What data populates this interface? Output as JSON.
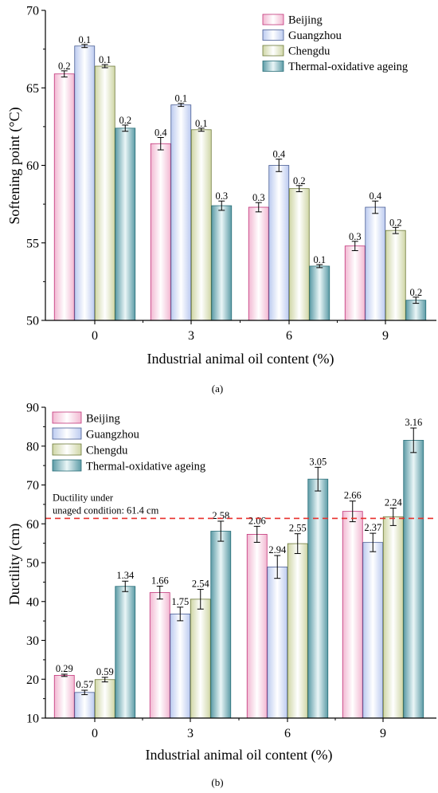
{
  "series_styles": [
    {
      "edge": "#c2367a",
      "light": "#ffffff",
      "dark": "#f2b8d2"
    },
    {
      "edge": "#4a5e94",
      "light": "#ffffff",
      "dark": "#bccbf0"
    },
    {
      "edge": "#6e7a3a",
      "light": "#ffffff",
      "dark": "#cfd6a6"
    },
    {
      "edge": "#2a6f79",
      "light": "#eaf6f7",
      "dark": "#5c9ba6"
    }
  ],
  "ref_line_color": "#e8302c",
  "chart_data": [
    {
      "type": "bar",
      "caption": "(a)",
      "xlabel": "Industrial animal oil content (%)",
      "ylabel": "Softening point (°C)",
      "categories": [
        "0",
        "3",
        "6",
        "9"
      ],
      "ylim": [
        50,
        70
      ],
      "yticks": [
        50,
        55,
        60,
        65,
        70
      ],
      "legend_position": "top-right",
      "grid": false,
      "series": [
        {
          "name": "Beijing",
          "values": [
            65.9,
            61.4,
            57.3,
            54.8
          ],
          "errors": [
            0.2,
            0.4,
            0.3,
            0.3
          ],
          "labels": [
            "0.2",
            "0.4",
            "0.3",
            "0.3"
          ]
        },
        {
          "name": "Guangzhou",
          "values": [
            67.7,
            63.9,
            60.0,
            57.3
          ],
          "errors": [
            0.1,
            0.1,
            0.4,
            0.4
          ],
          "labels": [
            "0.1",
            "0.1",
            "0.4",
            "0.4"
          ]
        },
        {
          "name": "Chengdu",
          "values": [
            66.4,
            62.3,
            58.5,
            55.8
          ],
          "errors": [
            0.1,
            0.1,
            0.2,
            0.2
          ],
          "labels": [
            "0.1",
            "0.1",
            "0.2",
            "0.2"
          ]
        },
        {
          "name": "Thermal-oxidative ageing",
          "values": [
            62.4,
            57.4,
            53.5,
            51.3
          ],
          "errors": [
            0.2,
            0.3,
            0.1,
            0.2
          ],
          "labels": [
            "0.2",
            "0.3",
            "0.1",
            "0.2"
          ]
        }
      ]
    },
    {
      "type": "bar",
      "caption": "(b)",
      "xlabel": "Industrial animal oil content (%)",
      "ylabel": "Ductility (cm)",
      "categories": [
        "0",
        "3",
        "6",
        "9"
      ],
      "ylim": [
        10,
        90
      ],
      "yticks": [
        10,
        20,
        30,
        40,
        50,
        60,
        70,
        80,
        90
      ],
      "legend_position": "top-left",
      "grid": false,
      "reference_line": {
        "value": 61.4,
        "label_lines": [
          "Ductility under",
          "unaged condition: 61.4 cm"
        ]
      },
      "series": [
        {
          "name": "Beijing",
          "values": [
            21.0,
            42.3,
            57.3,
            63.2
          ],
          "errors": [
            0.29,
            1.66,
            2.06,
            2.66
          ],
          "labels": [
            "0.29",
            "1.66",
            "2.06",
            "2.66"
          ]
        },
        {
          "name": "Guangzhou",
          "values": [
            16.6,
            36.8,
            48.9,
            55.2
          ],
          "errors": [
            0.57,
            1.75,
            2.94,
            2.37
          ],
          "labels": [
            "0.57",
            "1.75",
            "2.94",
            "2.37"
          ]
        },
        {
          "name": "Chengdu",
          "values": [
            19.9,
            40.6,
            54.9,
            61.8
          ],
          "errors": [
            0.59,
            2.54,
            2.55,
            2.24
          ],
          "labels": [
            "0.59",
            "2.54",
            "2.55",
            "2.24"
          ]
        },
        {
          "name": "Thermal-oxidative ageing",
          "values": [
            43.9,
            58.1,
            71.5,
            81.5
          ],
          "errors": [
            1.34,
            2.58,
            3.05,
            3.16
          ],
          "labels": [
            "1.34",
            "2.58",
            "3.05",
            "3.16"
          ]
        }
      ]
    }
  ]
}
